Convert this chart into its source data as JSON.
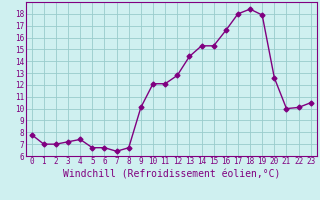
{
  "x": [
    0,
    1,
    2,
    3,
    4,
    5,
    6,
    7,
    8,
    9,
    10,
    11,
    12,
    13,
    14,
    15,
    16,
    17,
    18,
    19,
    20,
    21,
    22,
    23
  ],
  "y": [
    7.8,
    7.0,
    7.0,
    7.2,
    7.4,
    6.7,
    6.7,
    6.4,
    6.7,
    10.1,
    12.1,
    12.1,
    12.8,
    14.4,
    15.3,
    15.3,
    16.6,
    18.0,
    18.4,
    17.9,
    12.6,
    10.0,
    10.1,
    10.5
  ],
  "xlabel": "Windchill (Refroidissement éolien,°C)",
  "line_color": "#800080",
  "marker": "D",
  "marker_size": 2.5,
  "line_width": 1.0,
  "bg_color": "#cff0f0",
  "grid_color": "#99cccc",
  "ylim": [
    6,
    19
  ],
  "xlim": [
    -0.5,
    23.5
  ],
  "yticks": [
    6,
    7,
    8,
    9,
    10,
    11,
    12,
    13,
    14,
    15,
    16,
    17,
    18
  ],
  "xticks": [
    0,
    1,
    2,
    3,
    4,
    5,
    6,
    7,
    8,
    9,
    10,
    11,
    12,
    13,
    14,
    15,
    16,
    17,
    18,
    19,
    20,
    21,
    22,
    23
  ],
  "tick_color": "#800080",
  "tick_fontsize": 5.5,
  "xlabel_fontsize": 7.0
}
